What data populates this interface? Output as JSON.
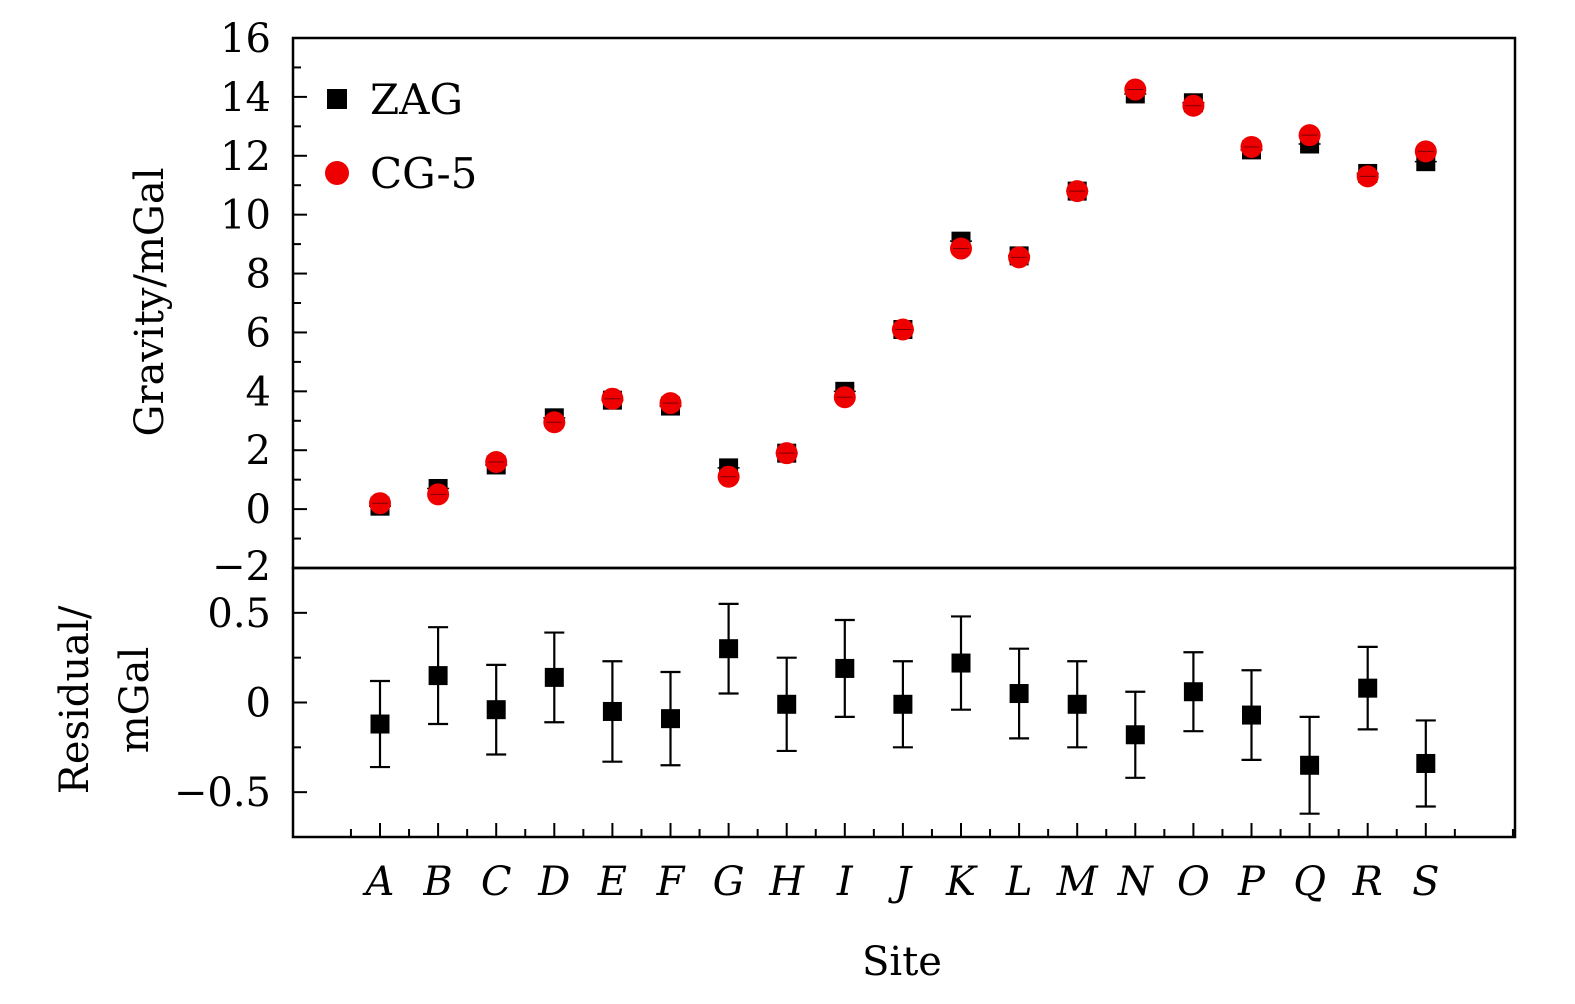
{
  "chart_data": [
    {
      "type": "scatter",
      "panel": "top",
      "ylabel": "Gravity/mGal",
      "ylim": [
        -2,
        16
      ],
      "yticks": [
        0,
        2,
        4,
        6,
        8,
        10,
        12,
        14,
        16
      ],
      "ytick_labels": [
        "0",
        "2",
        "4",
        "6",
        "8",
        "10",
        "12",
        "14",
        "16"
      ],
      "ytick_bottom_label": "−2",
      "categories": [
        "A",
        "B",
        "C",
        "D",
        "E",
        "F",
        "G",
        "H",
        "I",
        "J",
        "K",
        "L",
        "M",
        "N",
        "O",
        "P",
        "Q",
        "R",
        "S"
      ],
      "legend": {
        "position": "top-left"
      },
      "series": [
        {
          "name": "ZAG",
          "marker": "square",
          "color": "#000000",
          "values": [
            0.1,
            0.7,
            1.5,
            3.1,
            3.7,
            3.5,
            1.4,
            1.9,
            4.0,
            6.1,
            9.1,
            8.6,
            10.8,
            14.1,
            13.8,
            12.2,
            12.4,
            11.4,
            11.8
          ]
        },
        {
          "name": "CG-5",
          "marker": "circle",
          "color": "#ee0000",
          "values": [
            0.2,
            0.5,
            1.6,
            2.95,
            3.75,
            3.6,
            1.1,
            1.9,
            3.8,
            6.1,
            8.85,
            8.55,
            10.8,
            14.25,
            13.7,
            12.3,
            12.7,
            11.3,
            12.15
          ]
        }
      ]
    },
    {
      "type": "scatter",
      "panel": "bottom",
      "xlabel": "Site",
      "ylabel_line1": "Residual/",
      "ylabel_line2": "mGal",
      "ylim": [
        -0.75,
        0.75
      ],
      "yticks": [
        -0.5,
        0,
        0.5
      ],
      "ytick_labels": [
        "−0.5",
        "0",
        "0.5"
      ],
      "categories": [
        "A",
        "B",
        "C",
        "D",
        "E",
        "F",
        "G",
        "H",
        "I",
        "J",
        "K",
        "L",
        "M",
        "N",
        "O",
        "P",
        "Q",
        "R",
        "S"
      ],
      "series": [
        {
          "name": "Residual",
          "marker": "square",
          "color": "#000000",
          "values": [
            -0.12,
            0.15,
            -0.04,
            0.14,
            -0.05,
            -0.09,
            0.3,
            -0.01,
            0.19,
            -0.01,
            0.22,
            0.05,
            -0.01,
            -0.18,
            0.06,
            -0.07,
            -0.35,
            0.08,
            -0.34
          ],
          "errors": [
            0.24,
            0.27,
            0.25,
            0.25,
            0.28,
            0.26,
            0.25,
            0.26,
            0.27,
            0.24,
            0.26,
            0.25,
            0.24,
            0.24,
            0.22,
            0.25,
            0.27,
            0.23,
            0.24
          ]
        }
      ]
    }
  ]
}
